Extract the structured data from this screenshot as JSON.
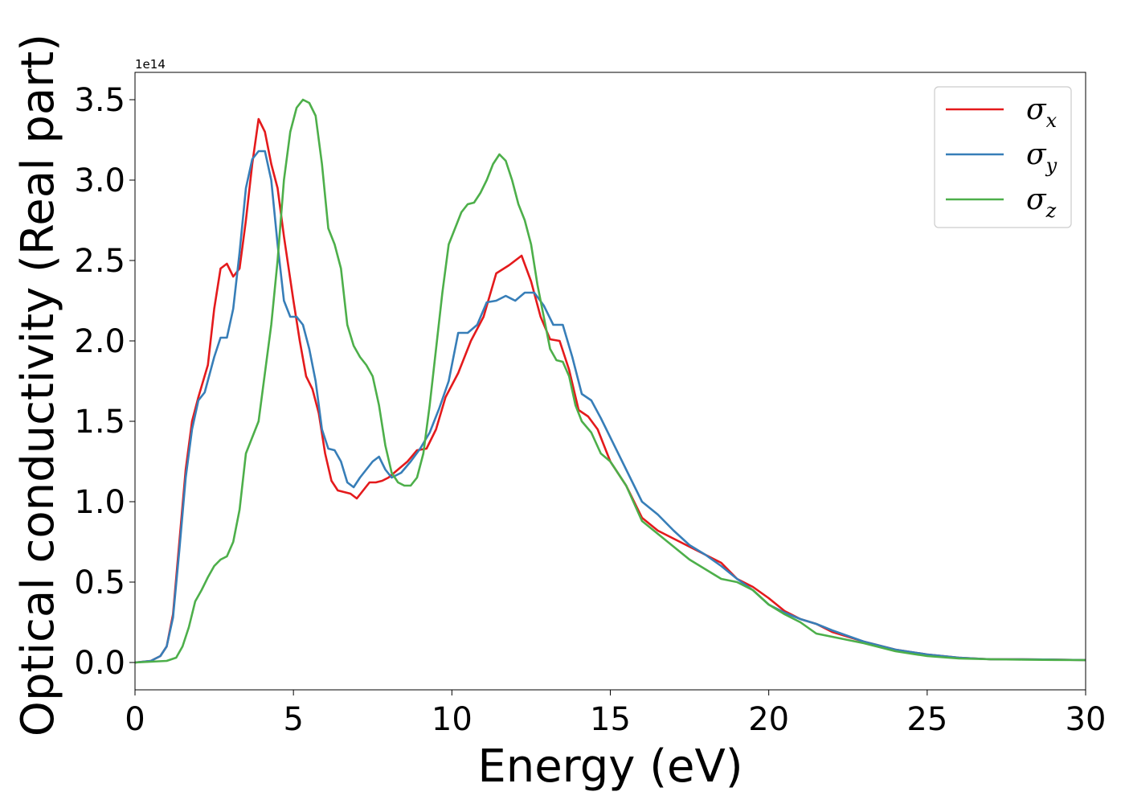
{
  "chart_data": {
    "type": "line",
    "xlabel": "Energy (eV)",
    "ylabel": "Optical conductivity (Real part)",
    "y_offset_label": "1e14",
    "y_scale": 100000000000000.0,
    "xlim": [
      0,
      30
    ],
    "ylim": [
      -0.17,
      3.67
    ],
    "xticks": [
      0,
      5,
      10,
      15,
      20,
      25,
      30
    ],
    "yticks": [
      0.0,
      0.5,
      1.0,
      1.5,
      2.0,
      2.5,
      3.0,
      3.5
    ],
    "xtick_labels": [
      "0",
      "5",
      "10",
      "15",
      "20",
      "25",
      "30"
    ],
    "ytick_labels": [
      "0.0",
      "0.5",
      "1.0",
      "1.5",
      "2.0",
      "2.5",
      "3.0",
      "3.5"
    ],
    "grid": false,
    "legend_position": "top-right",
    "series": [
      {
        "name": "σx",
        "name_base": "σ",
        "name_sub": "x",
        "color": "#e41a1c",
        "x": [
          0,
          0.5,
          0.8,
          1.0,
          1.2,
          1.4,
          1.6,
          1.8,
          2.0,
          2.3,
          2.5,
          2.7,
          2.9,
          3.1,
          3.3,
          3.5,
          3.7,
          3.9,
          4.1,
          4.3,
          4.5,
          4.7,
          5.0,
          5.2,
          5.4,
          5.6,
          5.8,
          6.0,
          6.2,
          6.4,
          6.6,
          6.8,
          7.0,
          7.2,
          7.4,
          7.6,
          7.8,
          8.0,
          8.3,
          8.6,
          8.9,
          9.2,
          9.5,
          9.8,
          10.2,
          10.6,
          11.0,
          11.4,
          11.8,
          12.2,
          12.5,
          12.8,
          13.1,
          13.4,
          13.7,
          14.0,
          14.3,
          14.6,
          15.0,
          15.5,
          16.0,
          16.5,
          17.0,
          17.5,
          18.0,
          18.5,
          19.0,
          19.5,
          20.0,
          20.5,
          21.0,
          21.5,
          22.0,
          23.0,
          24.0,
          25.0,
          26.0,
          27.0,
          28.0,
          29.0,
          30.0
        ],
        "y": [
          0.0,
          0.01,
          0.04,
          0.1,
          0.3,
          0.75,
          1.2,
          1.5,
          1.65,
          1.85,
          2.2,
          2.45,
          2.48,
          2.4,
          2.45,
          2.75,
          3.1,
          3.38,
          3.3,
          3.1,
          2.95,
          2.65,
          2.25,
          2.0,
          1.78,
          1.7,
          1.55,
          1.3,
          1.13,
          1.07,
          1.06,
          1.05,
          1.02,
          1.07,
          1.12,
          1.12,
          1.13,
          1.15,
          1.2,
          1.25,
          1.32,
          1.33,
          1.45,
          1.65,
          1.8,
          2.0,
          2.15,
          2.42,
          2.47,
          2.53,
          2.37,
          2.15,
          2.01,
          2.0,
          1.82,
          1.57,
          1.53,
          1.45,
          1.25,
          1.1,
          0.9,
          0.82,
          0.77,
          0.72,
          0.67,
          0.62,
          0.52,
          0.47,
          0.4,
          0.32,
          0.27,
          0.24,
          0.19,
          0.13,
          0.08,
          0.05,
          0.03,
          0.02,
          0.02,
          0.018,
          0.015
        ]
      },
      {
        "name": "σy",
        "name_base": "σ",
        "name_sub": "y",
        "color": "#377eb8",
        "x": [
          0,
          0.5,
          0.8,
          1.0,
          1.2,
          1.4,
          1.6,
          1.8,
          2.0,
          2.2,
          2.5,
          2.7,
          2.9,
          3.1,
          3.3,
          3.5,
          3.7,
          3.9,
          4.1,
          4.3,
          4.5,
          4.7,
          4.9,
          5.1,
          5.3,
          5.5,
          5.7,
          5.9,
          6.1,
          6.3,
          6.5,
          6.7,
          6.9,
          7.1,
          7.3,
          7.5,
          7.7,
          7.9,
          8.1,
          8.4,
          8.7,
          9.0,
          9.3,
          9.6,
          9.9,
          10.2,
          10.5,
          10.8,
          11.1,
          11.4,
          11.7,
          12.0,
          12.3,
          12.6,
          12.9,
          13.2,
          13.5,
          13.8,
          14.1,
          14.4,
          14.7,
          15.0,
          15.5,
          16.0,
          16.5,
          17.0,
          17.5,
          18.0,
          18.5,
          19.0,
          19.5,
          20.0,
          20.5,
          21.0,
          21.5,
          22.0,
          23.0,
          24.0,
          25.0,
          26.0,
          27.0,
          28.0,
          29.0,
          30.0
        ],
        "y": [
          0.0,
          0.01,
          0.04,
          0.1,
          0.28,
          0.7,
          1.15,
          1.45,
          1.63,
          1.68,
          1.9,
          2.02,
          2.02,
          2.2,
          2.55,
          2.95,
          3.13,
          3.18,
          3.18,
          3.0,
          2.6,
          2.25,
          2.15,
          2.15,
          2.1,
          1.95,
          1.75,
          1.45,
          1.33,
          1.32,
          1.25,
          1.12,
          1.09,
          1.15,
          1.2,
          1.25,
          1.28,
          1.2,
          1.15,
          1.18,
          1.25,
          1.33,
          1.43,
          1.58,
          1.75,
          2.05,
          2.05,
          2.1,
          2.24,
          2.25,
          2.28,
          2.25,
          2.3,
          2.3,
          2.22,
          2.1,
          2.1,
          1.9,
          1.67,
          1.63,
          1.52,
          1.4,
          1.2,
          1.0,
          0.92,
          0.82,
          0.73,
          0.67,
          0.6,
          0.52,
          0.45,
          0.36,
          0.31,
          0.27,
          0.24,
          0.2,
          0.13,
          0.08,
          0.05,
          0.03,
          0.02,
          0.02,
          0.018,
          0.015
        ]
      },
      {
        "name": "σz",
        "name_base": "σ",
        "name_sub": "z",
        "color": "#4daf4a",
        "x": [
          0,
          0.5,
          1.0,
          1.3,
          1.5,
          1.7,
          1.9,
          2.1,
          2.3,
          2.5,
          2.7,
          2.9,
          3.1,
          3.3,
          3.5,
          3.7,
          3.9,
          4.1,
          4.3,
          4.5,
          4.7,
          4.9,
          5.1,
          5.3,
          5.4,
          5.5,
          5.7,
          5.9,
          6.1,
          6.3,
          6.5,
          6.7,
          6.9,
          7.1,
          7.3,
          7.5,
          7.7,
          7.9,
          8.1,
          8.3,
          8.5,
          8.7,
          8.9,
          9.1,
          9.3,
          9.5,
          9.7,
          9.9,
          10.1,
          10.3,
          10.5,
          10.7,
          10.9,
          11.1,
          11.3,
          11.5,
          11.7,
          11.9,
          12.1,
          12.3,
          12.5,
          12.7,
          12.9,
          13.1,
          13.3,
          13.5,
          13.7,
          13.9,
          14.1,
          14.4,
          14.7,
          15.0,
          15.5,
          16.0,
          16.5,
          17.0,
          17.5,
          18.0,
          18.5,
          19.0,
          19.5,
          20.0,
          20.5,
          21.0,
          21.5,
          22.0,
          23.0,
          24.0,
          25.0,
          26.0,
          27.0,
          28.0,
          29.0,
          30.0
        ],
        "y": [
          0.0,
          0.005,
          0.01,
          0.03,
          0.1,
          0.22,
          0.38,
          0.45,
          0.53,
          0.6,
          0.64,
          0.66,
          0.75,
          0.95,
          1.3,
          1.4,
          1.5,
          1.8,
          2.1,
          2.5,
          3.0,
          3.3,
          3.45,
          3.5,
          3.49,
          3.48,
          3.4,
          3.1,
          2.7,
          2.6,
          2.45,
          2.1,
          1.97,
          1.9,
          1.85,
          1.78,
          1.6,
          1.35,
          1.18,
          1.12,
          1.1,
          1.1,
          1.15,
          1.3,
          1.6,
          1.95,
          2.3,
          2.6,
          2.7,
          2.8,
          2.85,
          2.86,
          2.92,
          3.0,
          3.1,
          3.16,
          3.12,
          3.0,
          2.85,
          2.75,
          2.6,
          2.35,
          2.15,
          1.95,
          1.88,
          1.87,
          1.78,
          1.6,
          1.5,
          1.43,
          1.3,
          1.25,
          1.1,
          0.88,
          0.8,
          0.72,
          0.64,
          0.58,
          0.52,
          0.5,
          0.45,
          0.36,
          0.3,
          0.25,
          0.18,
          0.16,
          0.12,
          0.07,
          0.04,
          0.025,
          0.02,
          0.018,
          0.016,
          0.015
        ]
      }
    ]
  }
}
